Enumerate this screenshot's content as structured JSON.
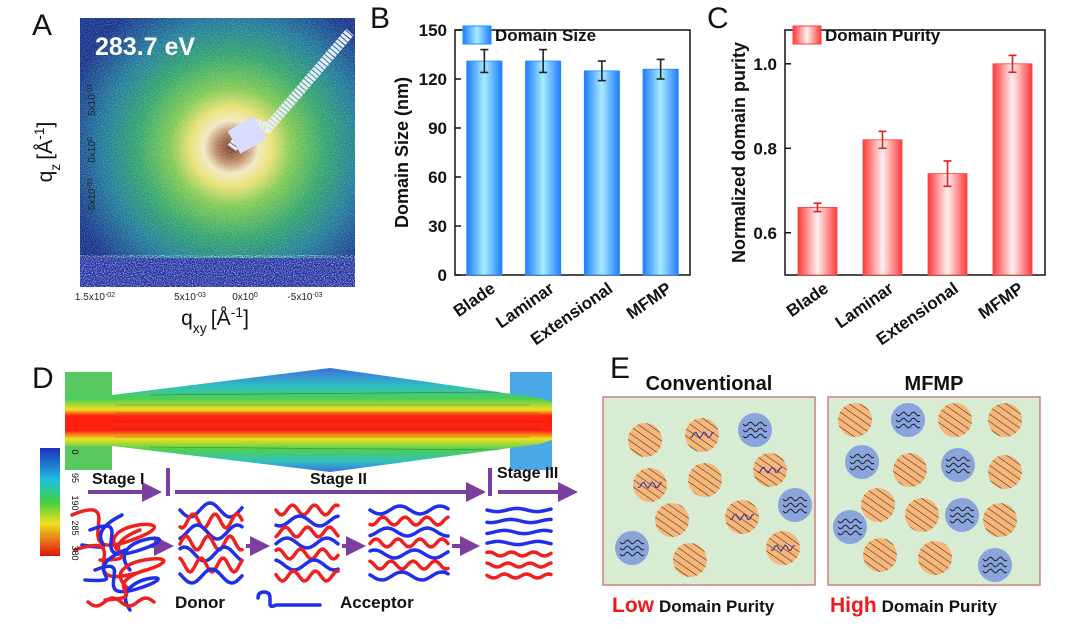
{
  "panel_labels": [
    "A",
    "B",
    "C",
    "D",
    "E"
  ],
  "panel_a": {
    "energy": "283.7 eV",
    "y_label": {
      "q": "q",
      "sub": "z",
      "unit": "[Å",
      "exp": "-1",
      "close": "]"
    },
    "x_label": {
      "q": "q",
      "sub": "xy",
      "unit": "[Å",
      "exp": "-1",
      "close": "]"
    },
    "xticks": [
      {
        "base": "1.5x10",
        "exp": "-02"
      },
      {
        "base": "5x10",
        "exp": "-03"
      },
      {
        "base": "0x10",
        "exp": "0"
      },
      {
        "base": "-5x10",
        "exp": "-03"
      }
    ],
    "yticks": [
      {
        "base": "5x10",
        "exp": "-03"
      },
      {
        "base": "0x10",
        "exp": "0"
      },
      {
        "base": "-5x10",
        "exp": "-03"
      }
    ]
  },
  "chart_data": [
    {
      "type": "bar",
      "y_label": "Domain Size (nm)",
      "legend": "Domain Size",
      "categories": [
        "Blade",
        "Laminar",
        "Extensional",
        "MFMP"
      ],
      "values": [
        131,
        131,
        125,
        126
      ],
      "errors": [
        7,
        7,
        6,
        6
      ],
      "ylim": [
        0,
        150
      ],
      "yticks": [
        0,
        30,
        60,
        90,
        120,
        150
      ],
      "color": "#1e8cff"
    },
    {
      "type": "bar",
      "y_label": "Normalized domain purity",
      "legend": "Domain Purity",
      "categories": [
        "Blade",
        "Laminar",
        "Extensional",
        "MFMP"
      ],
      "values": [
        0.66,
        0.82,
        0.74,
        1.0
      ],
      "errors": [
        0.01,
        0.02,
        0.03,
        0.02
      ],
      "ylim": [
        0.5,
        1.08
      ],
      "yticks": [
        0.6,
        0.8,
        {
          "value": 1,
          "label": "1.0"
        }
      ],
      "color": "#ff3b3b"
    }
  ],
  "panel_d": {
    "stages": [
      "Stage I",
      "Stage II",
      "Stage III"
    ],
    "colorbar_ticks": [
      "0",
      "95",
      "190",
      "285",
      "380"
    ],
    "legend": [
      "Donor",
      "Acceptor"
    ]
  },
  "panel_e": {
    "titles": [
      "Conventional",
      "MFMP"
    ],
    "captions": [
      {
        "emphasis": "Low",
        "text": "Domain Purity"
      },
      {
        "emphasis": "High",
        "text": "Domain Purity"
      }
    ]
  }
}
